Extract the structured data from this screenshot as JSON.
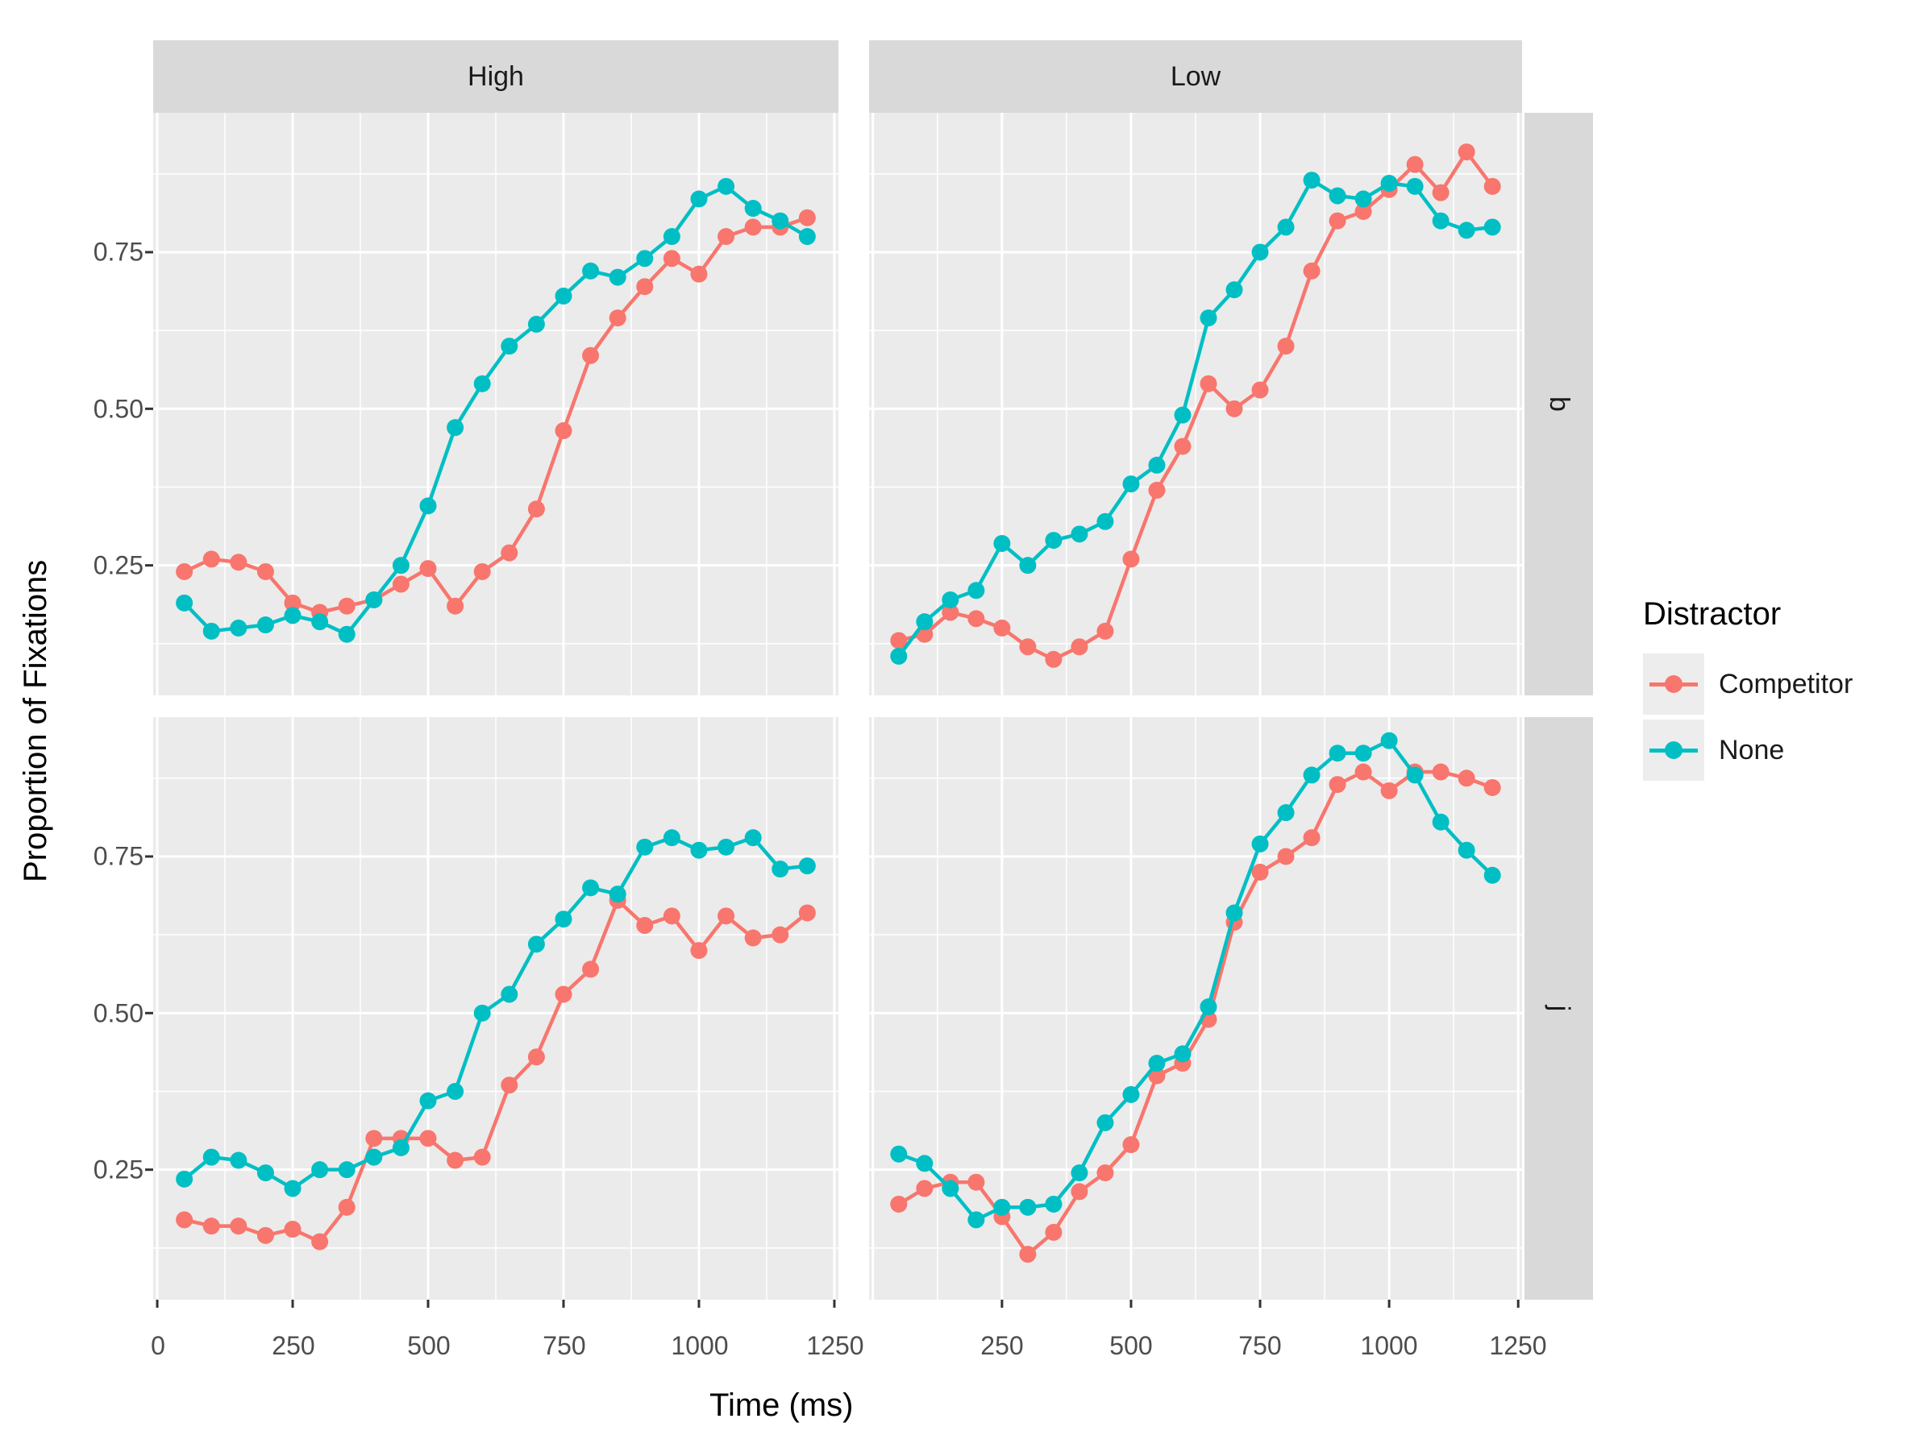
{
  "figure": {
    "background": "#ffffff",
    "panel_background": "#ebebeb",
    "grid_color": "#ffffff"
  },
  "axes": {
    "x_title": "Time (ms)",
    "y_title": "Proportion of Fixations",
    "x_ticks_left": [
      "0",
      "250",
      "500",
      "750",
      "1000",
      "1250"
    ],
    "x_ticks_right": [
      "250",
      "500",
      "750",
      "1000",
      "1250"
    ],
    "y_ticks": [
      "0.75",
      "0.50",
      "0.25"
    ]
  },
  "facets": {
    "columns": [
      "High",
      "Low"
    ],
    "rows": [
      "b",
      "j"
    ]
  },
  "legend": {
    "title": "Distractor",
    "entries": [
      {
        "label": "Competitor",
        "color": "#F8766D"
      },
      {
        "label": "None",
        "color": "#00BFC4"
      }
    ]
  },
  "chart_data": {
    "type": "line",
    "x_label": "Time (ms)",
    "y_label": "Proportion of Fixations",
    "x_range": [
      -7.5,
      1257.5
    ],
    "y_range": [
      0.0425,
      0.9725
    ],
    "x_major_breaks": [
      0,
      250,
      500,
      750,
      1000,
      1250
    ],
    "x_minor_breaks": [
      125,
      375,
      625,
      875,
      1125
    ],
    "y_major_breaks": [
      0.25,
      0.5,
      0.75
    ],
    "y_minor_breaks": [
      0.125,
      0.375,
      0.625,
      0.875
    ],
    "x": [
      50,
      100,
      150,
      200,
      250,
      300,
      350,
      400,
      450,
      500,
      550,
      600,
      650,
      700,
      750,
      800,
      850,
      900,
      950,
      1000,
      1050,
      1100,
      1150,
      1200
    ],
    "panels": [
      {
        "col": "High",
        "row": "b",
        "series": [
          {
            "name": "Competitor",
            "color": "#F8766D",
            "values": [
              0.24,
              0.26,
              0.255,
              0.24,
              0.19,
              0.175,
              0.185,
              0.195,
              0.22,
              0.245,
              0.185,
              0.24,
              0.27,
              0.34,
              0.465,
              0.585,
              0.645,
              0.695,
              0.74,
              0.715,
              0.775,
              0.79,
              0.79,
              0.805
            ]
          },
          {
            "name": "None",
            "color": "#00BFC4",
            "values": [
              0.19,
              0.145,
              0.15,
              0.155,
              0.17,
              0.16,
              0.14,
              0.195,
              0.25,
              0.345,
              0.47,
              0.54,
              0.6,
              0.635,
              0.68,
              0.72,
              0.71,
              0.74,
              0.775,
              0.835,
              0.855,
              0.82,
              0.8,
              0.775
            ]
          }
        ]
      },
      {
        "col": "Low",
        "row": "b",
        "series": [
          {
            "name": "Competitor",
            "color": "#F8766D",
            "values": [
              0.13,
              0.14,
              0.175,
              0.165,
              0.15,
              0.12,
              0.1,
              0.12,
              0.145,
              0.26,
              0.37,
              0.44,
              0.54,
              0.5,
              0.53,
              0.6,
              0.72,
              0.8,
              0.815,
              0.85,
              0.89,
              0.845,
              0.91,
              0.855
            ]
          },
          {
            "name": "None",
            "color": "#00BFC4",
            "values": [
              0.105,
              0.16,
              0.195,
              0.21,
              0.285,
              0.25,
              0.29,
              0.3,
              0.32,
              0.38,
              0.41,
              0.49,
              0.645,
              0.69,
              0.75,
              0.79,
              0.865,
              0.84,
              0.835,
              0.86,
              0.855,
              0.8,
              0.785,
              0.79
            ]
          }
        ]
      },
      {
        "col": "High",
        "row": "j",
        "series": [
          {
            "name": "Competitor",
            "color": "#F8766D",
            "values": [
              0.17,
              0.16,
              0.16,
              0.145,
              0.155,
              0.135,
              0.19,
              0.3,
              0.3,
              0.3,
              0.265,
              0.27,
              0.385,
              0.43,
              0.53,
              0.57,
              0.68,
              0.64,
              0.655,
              0.6,
              0.655,
              0.62,
              0.625,
              0.66
            ]
          },
          {
            "name": "None",
            "color": "#00BFC4",
            "values": [
              0.235,
              0.27,
              0.265,
              0.245,
              0.22,
              0.25,
              0.25,
              0.27,
              0.285,
              0.36,
              0.375,
              0.5,
              0.53,
              0.61,
              0.65,
              0.7,
              0.69,
              0.765,
              0.78,
              0.76,
              0.765,
              0.78,
              0.73,
              0.735
            ]
          }
        ]
      },
      {
        "col": "Low",
        "row": "j",
        "series": [
          {
            "name": "Competitor",
            "color": "#F8766D",
            "values": [
              0.195,
              0.22,
              0.23,
              0.23,
              0.175,
              0.115,
              0.15,
              0.215,
              0.245,
              0.29,
              0.4,
              0.42,
              0.49,
              0.645,
              0.725,
              0.75,
              0.78,
              0.865,
              0.885,
              0.855,
              0.885,
              0.885,
              0.875,
              0.86
            ]
          },
          {
            "name": "None",
            "color": "#00BFC4",
            "values": [
              0.275,
              0.26,
              0.22,
              0.17,
              0.19,
              0.19,
              0.195,
              0.245,
              0.325,
              0.37,
              0.42,
              0.435,
              0.51,
              0.66,
              0.77,
              0.82,
              0.88,
              0.915,
              0.915,
              0.935,
              0.88,
              0.805,
              0.76,
              0.72
            ]
          }
        ]
      }
    ]
  }
}
